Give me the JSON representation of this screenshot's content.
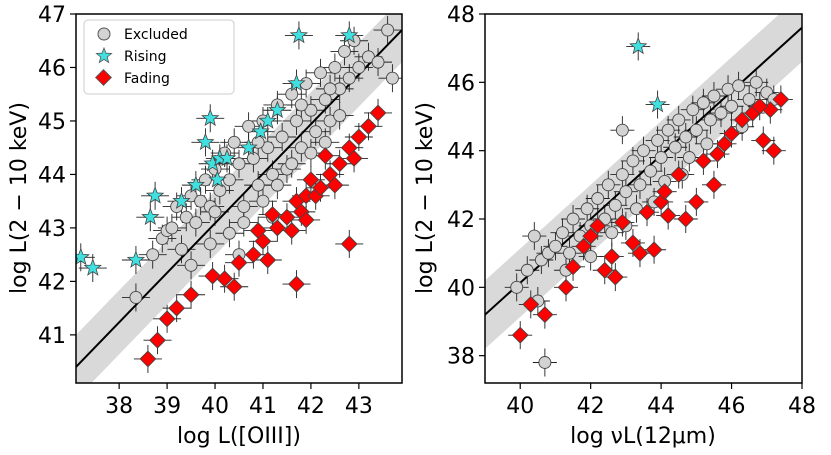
{
  "chart_data": [
    {
      "type": "scatter",
      "panel": "left",
      "xlabel": "log L([OIII])",
      "ylabel": "log L(2 − 10 keV)",
      "xlim": [
        37.1,
        43.9
      ],
      "ylim": [
        40.1,
        47.0
      ],
      "xticks": [
        38,
        39,
        40,
        41,
        42,
        43
      ],
      "yticks": [
        41,
        42,
        43,
        44,
        45,
        46,
        47
      ],
      "fit_line": {
        "x": [
          37.1,
          43.9
        ],
        "y": [
          40.4,
          46.7
        ]
      },
      "band_halfwidth": 0.6,
      "legend": {
        "location": "top-left",
        "entries": [
          "Excluded",
          "Rising",
          "Fading"
        ]
      },
      "series": [
        {
          "name": "Excluded",
          "marker": "circle",
          "color": "#d3d3d3",
          "points": [
            [
              38.35,
              41.7
            ],
            [
              38.7,
              42.5
            ],
            [
              38.9,
              42.8
            ],
            [
              39.0,
              42.95
            ],
            [
              39.1,
              43.0
            ],
            [
              39.2,
              43.4
            ],
            [
              39.3,
              42.6
            ],
            [
              39.4,
              43.2
            ],
            [
              39.5,
              43.6
            ],
            [
              39.6,
              43.1
            ],
            [
              39.7,
              43.5
            ],
            [
              39.8,
              43.9
            ],
            [
              39.9,
              43.4
            ],
            [
              40.0,
              44.1
            ],
            [
              40.1,
              43.7
            ],
            [
              40.2,
              44.4
            ],
            [
              40.3,
              43.9
            ],
            [
              40.4,
              44.6
            ],
            [
              40.5,
              44.2
            ],
            [
              40.6,
              43.4
            ],
            [
              40.7,
              44.9
            ],
            [
              40.8,
              44.3
            ],
            [
              40.9,
              43.8
            ],
            [
              41.0,
              45.0
            ],
            [
              41.1,
              44.5
            ],
            [
              41.2,
              44.0
            ],
            [
              41.3,
              45.3
            ],
            [
              41.4,
              44.7
            ],
            [
              41.5,
              44.1
            ],
            [
              41.6,
              45.5
            ],
            [
              41.7,
              45.0
            ],
            [
              41.8,
              44.5
            ],
            [
              41.9,
              45.7
            ],
            [
              42.0,
              45.2
            ],
            [
              42.1,
              44.8
            ],
            [
              42.2,
              45.9
            ],
            [
              42.3,
              45.4
            ],
            [
              42.4,
              45.0
            ],
            [
              42.5,
              46.0
            ],
            [
              42.6,
              45.6
            ],
            [
              42.7,
              46.3
            ],
            [
              42.8,
              45.8
            ],
            [
              42.9,
              46.5
            ],
            [
              43.0,
              46.0
            ],
            [
              43.2,
              46.2
            ],
            [
              43.4,
              46.1
            ],
            [
              43.6,
              46.7
            ],
            [
              43.7,
              45.8
            ],
            [
              39.9,
              42.7
            ],
            [
              40.3,
              42.9
            ],
            [
              40.6,
              43.1
            ],
            [
              41.0,
              43.5
            ],
            [
              41.3,
              43.8
            ],
            [
              41.6,
              44.2
            ],
            [
              42.0,
              44.4
            ],
            [
              42.3,
              44.6
            ],
            [
              42.6,
              45.1
            ],
            [
              39.5,
              42.3
            ],
            [
              40.0,
              43.3
            ],
            [
              40.9,
              44.6
            ],
            [
              41.8,
              45.3
            ],
            [
              42.4,
              45.6
            ],
            [
              41.2,
              43.2
            ],
            [
              40.5,
              42.5
            ]
          ]
        },
        {
          "name": "Rising",
          "marker": "star",
          "color": "#40e0e0",
          "points": [
            [
              37.2,
              42.45
            ],
            [
              37.45,
              42.25
            ],
            [
              38.35,
              42.4
            ],
            [
              38.65,
              43.2
            ],
            [
              38.75,
              43.6
            ],
            [
              39.3,
              43.5
            ],
            [
              39.6,
              43.8
            ],
            [
              39.8,
              44.6
            ],
            [
              39.9,
              45.05
            ],
            [
              39.95,
              44.2
            ],
            [
              40.05,
              43.9
            ],
            [
              40.1,
              44.3
            ],
            [
              40.25,
              44.3
            ],
            [
              40.7,
              44.5
            ],
            [
              40.95,
              44.8
            ],
            [
              41.1,
              45.0
            ],
            [
              41.3,
              45.2
            ],
            [
              41.7,
              45.7
            ],
            [
              41.75,
              46.6
            ],
            [
              42.8,
              46.6
            ]
          ]
        },
        {
          "name": "Fading",
          "marker": "diamond",
          "color": "#ff0000",
          "points": [
            [
              38.6,
              40.55
            ],
            [
              38.8,
              40.9
            ],
            [
              39.0,
              41.3
            ],
            [
              39.2,
              41.5
            ],
            [
              39.5,
              41.75
            ],
            [
              39.95,
              42.1
            ],
            [
              40.2,
              42.05
            ],
            [
              40.4,
              41.9
            ],
            [
              40.5,
              42.35
            ],
            [
              40.8,
              42.5
            ],
            [
              41.0,
              42.75
            ],
            [
              41.1,
              42.4
            ],
            [
              41.3,
              43.0
            ],
            [
              41.5,
              43.2
            ],
            [
              41.6,
              42.95
            ],
            [
              41.7,
              43.5
            ],
            [
              41.8,
              43.3
            ],
            [
              41.9,
              43.6
            ],
            [
              42.0,
              43.9
            ],
            [
              42.1,
              43.6
            ],
            [
              42.2,
              43.75
            ],
            [
              42.4,
              44.0
            ],
            [
              42.5,
              43.8
            ],
            [
              42.6,
              44.2
            ],
            [
              42.8,
              44.5
            ],
            [
              42.9,
              44.3
            ],
            [
              43.0,
              44.7
            ],
            [
              43.2,
              44.9
            ],
            [
              43.4,
              45.15
            ],
            [
              41.7,
              41.95
            ],
            [
              42.8,
              42.7
            ],
            [
              40.9,
              42.95
            ],
            [
              41.2,
              43.25
            ],
            [
              41.9,
              43.15
            ],
            [
              42.3,
              44.35
            ]
          ]
        }
      ]
    },
    {
      "type": "scatter",
      "panel": "right",
      "xlabel": "log νL(12μm)",
      "ylabel": "log L(2 − 10 keV)",
      "xlim": [
        39.0,
        48.0
      ],
      "ylim": [
        37.2,
        48.0
      ],
      "xticks": [
        40,
        42,
        44,
        46,
        48
      ],
      "yticks": [
        38,
        40,
        42,
        44,
        46,
        48
      ],
      "fit_line": {
        "x": [
          39.0,
          48.0
        ],
        "y": [
          39.2,
          47.6
        ]
      },
      "band_halfwidth": 1.0,
      "series": [
        {
          "name": "Excluded",
          "marker": "circle",
          "color": "#d3d3d3",
          "points": [
            [
              39.9,
              40.0
            ],
            [
              40.2,
              40.5
            ],
            [
              40.4,
              41.5
            ],
            [
              40.6,
              40.8
            ],
            [
              40.7,
              37.8
            ],
            [
              40.8,
              41.0
            ],
            [
              41.0,
              41.2
            ],
            [
              41.2,
              41.6
            ],
            [
              41.4,
              41.0
            ],
            [
              41.5,
              42.0
            ],
            [
              41.7,
              41.5
            ],
            [
              41.9,
              42.3
            ],
            [
              42.0,
              41.8
            ],
            [
              42.2,
              42.6
            ],
            [
              42.4,
              42.0
            ],
            [
              42.5,
              43.0
            ],
            [
              42.7,
              42.4
            ],
            [
              42.9,
              43.3
            ],
            [
              43.0,
              42.8
            ],
            [
              43.2,
              43.7
            ],
            [
              43.4,
              43.0
            ],
            [
              43.5,
              44.0
            ],
            [
              43.7,
              43.4
            ],
            [
              43.9,
              44.3
            ],
            [
              44.0,
              43.8
            ],
            [
              44.2,
              44.6
            ],
            [
              44.4,
              44.1
            ],
            [
              44.5,
              44.9
            ],
            [
              44.7,
              44.4
            ],
            [
              44.9,
              45.2
            ],
            [
              45.0,
              44.6
            ],
            [
              45.2,
              45.4
            ],
            [
              45.4,
              44.9
            ],
            [
              45.5,
              45.6
            ],
            [
              45.7,
              45.1
            ],
            [
              45.9,
              45.8
            ],
            [
              46.0,
              45.3
            ],
            [
              46.2,
              45.9
            ],
            [
              46.5,
              45.5
            ],
            [
              46.7,
              46.0
            ],
            [
              47.0,
              45.7
            ],
            [
              47.2,
              45.5
            ],
            [
              42.6,
              41.6
            ],
            [
              43.3,
              42.3
            ],
            [
              44.1,
              43.1
            ],
            [
              44.8,
              43.8
            ],
            [
              43.8,
              42.5
            ],
            [
              42.0,
              40.9
            ],
            [
              41.3,
              40.5
            ],
            [
              45.3,
              44.2
            ],
            [
              46.3,
              44.7
            ],
            [
              43.0,
              41.8
            ],
            [
              44.6,
              43.3
            ],
            [
              40.5,
              39.6
            ],
            [
              42.9,
              44.6
            ]
          ]
        },
        {
          "name": "Rising",
          "marker": "star",
          "color": "#40e0e0",
          "points": [
            [
              43.35,
              47.05
            ],
            [
              43.9,
              45.35
            ]
          ]
        },
        {
          "name": "Fading",
          "marker": "diamond",
          "color": "#ff0000",
          "points": [
            [
              40.0,
              38.6
            ],
            [
              40.3,
              39.5
            ],
            [
              40.7,
              39.2
            ],
            [
              41.3,
              40.0
            ],
            [
              41.5,
              40.6
            ],
            [
              41.8,
              41.2
            ],
            [
              42.0,
              41.5
            ],
            [
              42.2,
              41.8
            ],
            [
              42.4,
              40.5
            ],
            [
              42.7,
              40.3
            ],
            [
              42.9,
              41.9
            ],
            [
              43.2,
              41.3
            ],
            [
              43.4,
              41.0
            ],
            [
              43.6,
              42.2
            ],
            [
              43.8,
              41.1
            ],
            [
              44.0,
              42.5
            ],
            [
              44.2,
              42.1
            ],
            [
              44.5,
              43.3
            ],
            [
              44.7,
              42.0
            ],
            [
              45.0,
              42.5
            ],
            [
              45.2,
              43.7
            ],
            [
              45.5,
              43.0
            ],
            [
              45.8,
              44.2
            ],
            [
              46.0,
              44.5
            ],
            [
              46.3,
              44.9
            ],
            [
              46.6,
              45.1
            ],
            [
              46.9,
              44.3
            ],
            [
              47.1,
              45.2
            ],
            [
              47.4,
              45.5
            ],
            [
              47.2,
              44.0
            ],
            [
              44.1,
              42.8
            ],
            [
              45.6,
              43.9
            ],
            [
              46.8,
              45.3
            ],
            [
              42.6,
              40.9
            ]
          ]
        }
      ]
    }
  ]
}
